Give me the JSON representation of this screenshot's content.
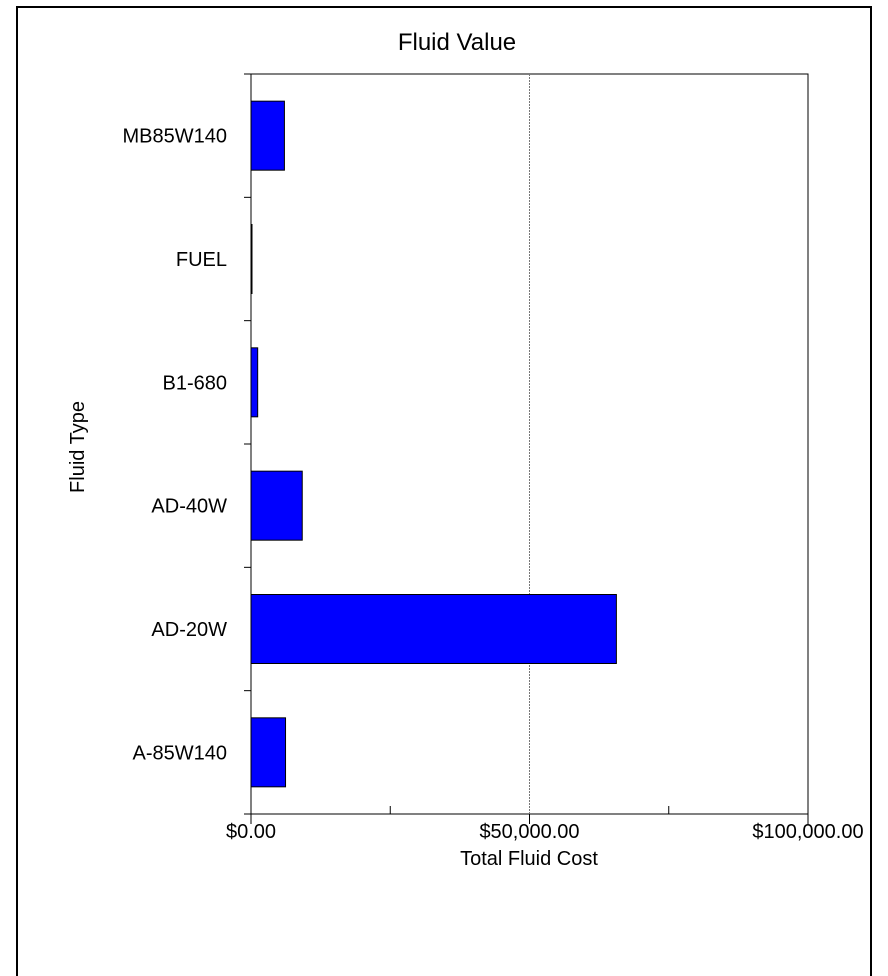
{
  "chart_data": {
    "type": "bar",
    "orientation": "horizontal",
    "title": "Fluid Value",
    "xlabel": "Total Fluid Cost",
    "ylabel": "Fluid Type",
    "categories": [
      "MB85W140",
      "FUEL",
      "B1-680",
      "AD-40W",
      "AD-20W",
      "A-85W140"
    ],
    "values": [
      6000,
      150,
      1200,
      9200,
      65600,
      6200
    ],
    "xlim": [
      0,
      100000
    ],
    "x_ticks": [
      {
        "value": 0,
        "label": "$0.00"
      },
      {
        "value": 50000,
        "label": "$50,000.00"
      },
      {
        "value": 100000,
        "label": "$100,000.00"
      }
    ],
    "x_minor_ticks": [
      25000,
      75000
    ],
    "gridlines": [
      50000
    ],
    "bar_color": "#0000ff",
    "bar_edge_color": "#000000"
  }
}
